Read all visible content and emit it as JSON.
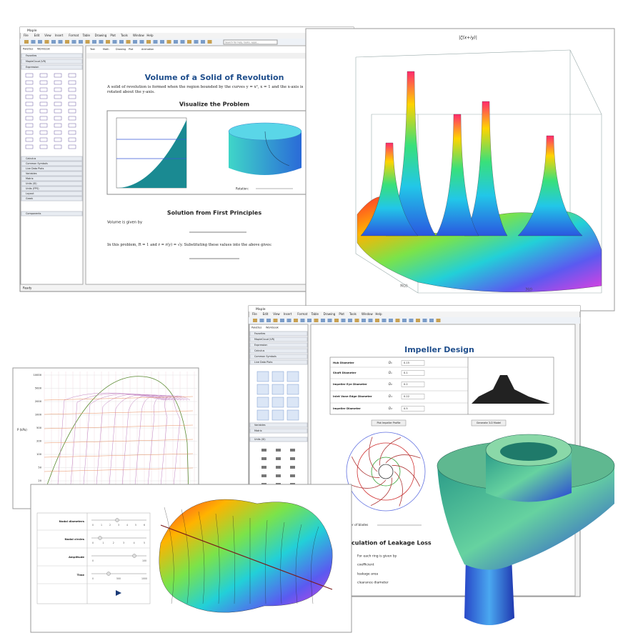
{
  "window1": {
    "title": "Maple",
    "menu": [
      "File",
      "Edit",
      "View",
      "Insert",
      "Format",
      "Table",
      "Drawing",
      "Plot",
      "Tools",
      "Window",
      "Help"
    ],
    "search": "Search for help, tasks, apps...",
    "tabs": [
      "Palettes",
      "Workbook"
    ],
    "palettes": [
      "Favorites",
      "MapleCloud (VR)",
      "Expression",
      "Calculus",
      "Common Symbols",
      "Live Data Plots",
      "Variables",
      "Matrix",
      "Units (SI)",
      "Units (FPS)",
      "Layout",
      "Greek",
      "Components"
    ],
    "doc_tabs": [
      "Text",
      "Math",
      "Drawing",
      "Plot",
      "Animation"
    ],
    "heading": "Volume of a Solid of Revolution",
    "intro": "A solid of revolution is formed when the region bounded by the curves y = x², x = 1 and the x-axis is rotated about the y-axis.",
    "section1": "Visualize the Problem",
    "rotation": "Rotation:",
    "section2": "Solution from First Principles",
    "volume_text": "Volume is given by",
    "problem_text": "In this problem, R = 1 and r = r(y) = √y. Substituting these values into the above gives:",
    "status": "Ready"
  },
  "plot3d": {
    "title": "|ζ(x+iy)|",
    "x_label": "ℜ(z)",
    "y_label": "ℑ(z)"
  },
  "window2": {
    "title": "Maple",
    "menu": [
      "File",
      "Edit",
      "View",
      "Insert",
      "Format",
      "Table",
      "Drawing",
      "Plot",
      "Tools",
      "Window",
      "Help"
    ],
    "tabs": [
      "Palettes",
      "Workbook"
    ],
    "palettes": [
      "Favorites",
      "MapleCloud (VR)",
      "Expression",
      "Calculus",
      "Common Symbols",
      "Live Data Plots",
      "Variables",
      "Matrix",
      "Units (SI)"
    ],
    "heading": "Impeller Design",
    "rows": [
      {
        "label": "Hub Diameter",
        "symbol": "Dₕ",
        "value": "0.15"
      },
      {
        "label": "Shaft Diameter",
        "symbol": "Dₛ",
        "value": "0.1"
      },
      {
        "label": "Impeller Eye Diameter",
        "symbol": "D₀",
        "value": "0.2"
      },
      {
        "label": "Inlet Vane Edge Diameter",
        "symbol": "D₁",
        "value": "0.22"
      },
      {
        "label": "Impeller Diameter",
        "symbol": "D₂",
        "value": "0.5"
      }
    ],
    "buttons": [
      "Plot Impeller Profile",
      "Generate 3-D Model"
    ],
    "slider_label": "Number of blades",
    "section": "Calculation of Leakage Loss",
    "lines": [
      "For each ring is given by",
      "coefficient",
      "leakage area",
      "clearance diameter"
    ]
  },
  "phase_chart": {
    "y_label": "P (kPa)",
    "y_tick_labels": [
      "10000",
      "5000",
      "2000",
      "1000",
      "500",
      "200",
      "100",
      "50",
      "20"
    ]
  },
  "modes_panel": {
    "controls": [
      {
        "label": "Nodal diameters",
        "ticks": [
          "0",
          "1",
          "2",
          "3",
          "4",
          "5",
          "6"
        ]
      },
      {
        "label": "Nodal circles",
        "ticks": [
          "0",
          "1",
          "2",
          "3",
          "4",
          "5"
        ]
      },
      {
        "label": "Amplitude",
        "ticks": [
          "0",
          "100"
        ]
      },
      {
        "label": "Time",
        "ticks": [
          "0",
          "500",
          "1000"
        ]
      }
    ]
  }
}
